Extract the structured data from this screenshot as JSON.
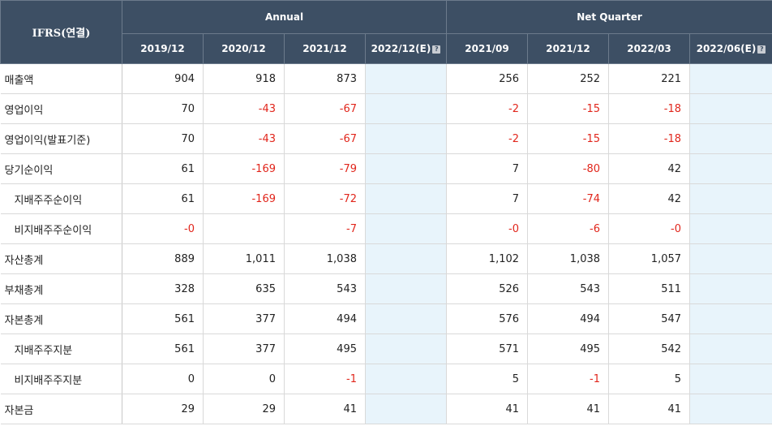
{
  "header": {
    "corner": "IFRS(연결)",
    "annual": "Annual",
    "net_quarter": "Net Quarter",
    "periods": [
      "2019/12",
      "2020/12",
      "2021/12",
      "2022/12(E)",
      "2021/09",
      "2021/12",
      "2022/03",
      "2022/06(E)"
    ],
    "help_icon": "?"
  },
  "rows": [
    {
      "label": "매출액",
      "values": [
        "904",
        "918",
        "873",
        "",
        "256",
        "252",
        "221",
        ""
      ]
    },
    {
      "label": "영업이익",
      "values": [
        "70",
        "-43",
        "-67",
        "",
        "-2",
        "-15",
        "-18",
        ""
      ]
    },
    {
      "label": "영업이익(발표기준)",
      "values": [
        "70",
        "-43",
        "-67",
        "",
        "-2",
        "-15",
        "-18",
        ""
      ]
    },
    {
      "label": "당기순이익",
      "values": [
        "61",
        "-169",
        "-79",
        "",
        "7",
        "-80",
        "42",
        ""
      ]
    },
    {
      "label": "지배주주순이익",
      "values": [
        "61",
        "-169",
        "-72",
        "",
        "7",
        "-74",
        "42",
        ""
      ]
    },
    {
      "label": "비지배주주순이익",
      "values": [
        "-0",
        "",
        "-7",
        "",
        "-0",
        "-6",
        "-0",
        ""
      ]
    },
    {
      "label": "자산총계",
      "values": [
        "889",
        "1,011",
        "1,038",
        "",
        "1,102",
        "1,038",
        "1,057",
        ""
      ]
    },
    {
      "label": "부채총계",
      "values": [
        "328",
        "635",
        "543",
        "",
        "526",
        "543",
        "511",
        ""
      ]
    },
    {
      "label": "자본총계",
      "values": [
        "561",
        "377",
        "494",
        "",
        "576",
        "494",
        "547",
        ""
      ]
    },
    {
      "label": "지배주주지분",
      "values": [
        "561",
        "377",
        "495",
        "",
        "571",
        "495",
        "542",
        ""
      ]
    },
    {
      "label": "비지배주주지분",
      "values": [
        "0",
        "0",
        "-1",
        "",
        "5",
        "-1",
        "5",
        ""
      ]
    },
    {
      "label": "자본금",
      "values": [
        "29",
        "29",
        "41",
        "",
        "41",
        "41",
        "41",
        ""
      ]
    }
  ]
}
